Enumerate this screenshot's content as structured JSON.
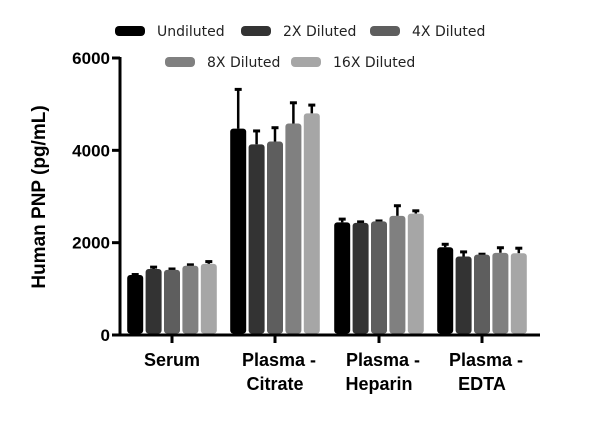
{
  "chart_data": {
    "type": "bar",
    "title": "",
    "xlabel": "",
    "ylabel": "Human PNP (pg/mL)",
    "ylim": [
      0,
      6000
    ],
    "yticks": [
      "0",
      "2000",
      "4000",
      "6000"
    ],
    "grid": false,
    "legend_position": "top",
    "categories": [
      [
        "Serum"
      ],
      [
        "Plasma -",
        "Citrate"
      ],
      [
        "Plasma -",
        "Heparin"
      ],
      [
        "Plasma -",
        "EDTA"
      ]
    ],
    "series": [
      {
        "name": "Undiluted",
        "color": "#000000",
        "values": [
          1300,
          4470,
          2440,
          1900
        ],
        "errors": [
          10,
          850,
          70,
          65
        ]
      },
      {
        "name": "2X Diluted",
        "color": "#333333",
        "values": [
          1430,
          4130,
          2430,
          1700
        ],
        "errors": [
          40,
          290,
          20,
          100
        ]
      },
      {
        "name": "4X Diluted",
        "color": "#5e5e5e",
        "values": [
          1410,
          4190,
          2460,
          1740
        ],
        "errors": [
          20,
          300,
          10,
          10
        ]
      },
      {
        "name": "8X Diluted",
        "color": "#808080",
        "values": [
          1500,
          4580,
          2580,
          1780
        ],
        "errors": [
          20,
          450,
          220,
          110
        ]
      },
      {
        "name": "16X Diluted",
        "color": "#a6a6a6",
        "values": [
          1540,
          4800,
          2630,
          1770
        ],
        "errors": [
          50,
          180,
          60,
          110
        ]
      }
    ]
  }
}
